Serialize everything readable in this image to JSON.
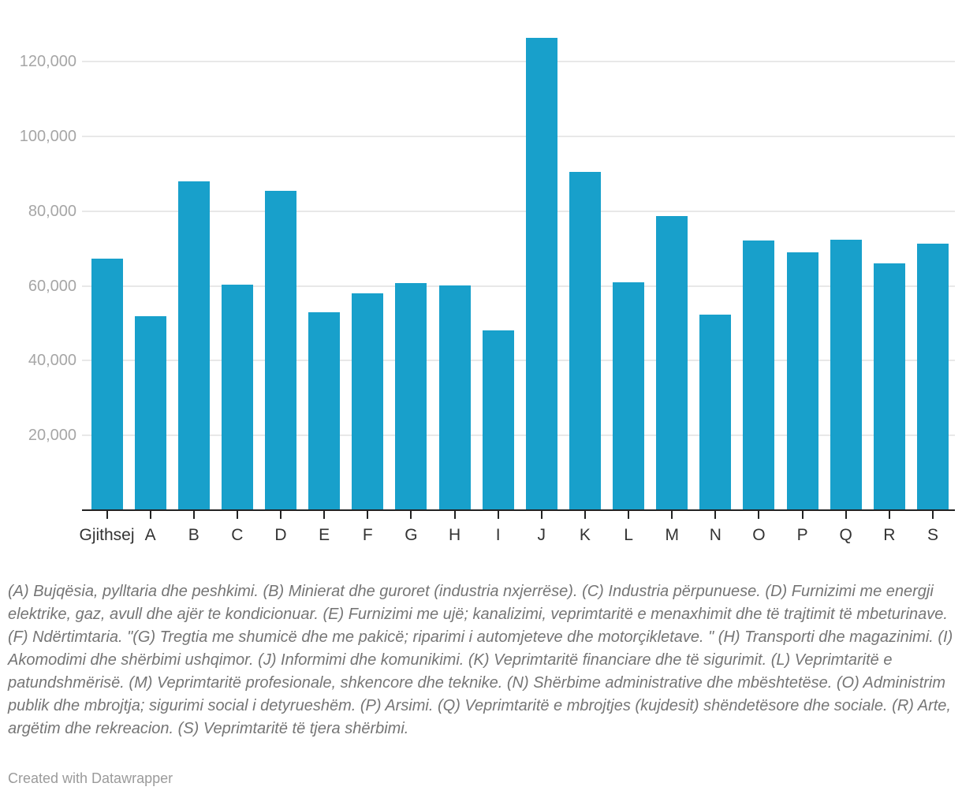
{
  "chart_data": {
    "type": "bar",
    "categories": [
      "Gjithsej",
      "A",
      "B",
      "C",
      "D",
      "E",
      "F",
      "G",
      "H",
      "I",
      "J",
      "K",
      "L",
      "M",
      "N",
      "O",
      "P",
      "Q",
      "R",
      "S"
    ],
    "values": [
      67200,
      51900,
      88000,
      60400,
      85500,
      52900,
      58100,
      60800,
      60200,
      48000,
      126300,
      90600,
      61000,
      78700,
      52400,
      72100,
      69000,
      72400,
      66000,
      71300
    ],
    "title": "",
    "xlabel": "",
    "ylabel": "",
    "ylim": [
      0,
      130000
    ],
    "ytick_interval": 20000,
    "ytick_values": [
      20000,
      40000,
      60000,
      80000,
      100000,
      120000
    ],
    "ytick_labels": [
      "20,000",
      "40,000",
      "60,000",
      "80,000",
      "100,000",
      "120,000"
    ],
    "grid": true,
    "legend": false,
    "bar_color": "#18a0cb",
    "gridline_color": "#e8e8e8",
    "axis_line_color": "#222222",
    "ytick_label_color": "#a6a6a6",
    "xtick_label_color": "#333333"
  },
  "notes": "(A) Bujqësia, pylltaria dhe peshkimi. (B) Minierat dhe guroret (industria nxjerrëse). (C) Industria përpunuese. (D) Furnizimi me energji elektrike, gaz, avull dhe ajër te kondicionuar. (E) Furnizimi me ujë; kanalizimi, veprimtaritë e menaxhimit dhe të trajtimit të mbeturinave. (F) Ndërtimtaria. \"(G) Tregtia me shumicë dhe me pakicë; riparimi i automjeteve dhe motorçikletave. \" (H) Transporti dhe magazinimi. (I) Akomodimi dhe shërbimi ushqimor. (J) Informimi dhe komunikimi. (K) Veprimtaritë financiare dhe të sigurimit. (L) Veprimtaritë e patundshmërisë. (M) Veprimtaritë profesionale, shkencore dhe teknike. (N) Shërbime administrative dhe mbështetëse. (O) Administrim publik dhe mbrojtja; sigurimi social i detyrueshëm. (P) Arsimi. (Q) Veprimtaritë e mbrojtjes (kujdesit) shëndetësore dhe sociale. (R) Arte, argëtim dhe rekreacion. (S) Veprimtaritë të tjera shërbimi.",
  "attribution": "Created with Datawrapper"
}
